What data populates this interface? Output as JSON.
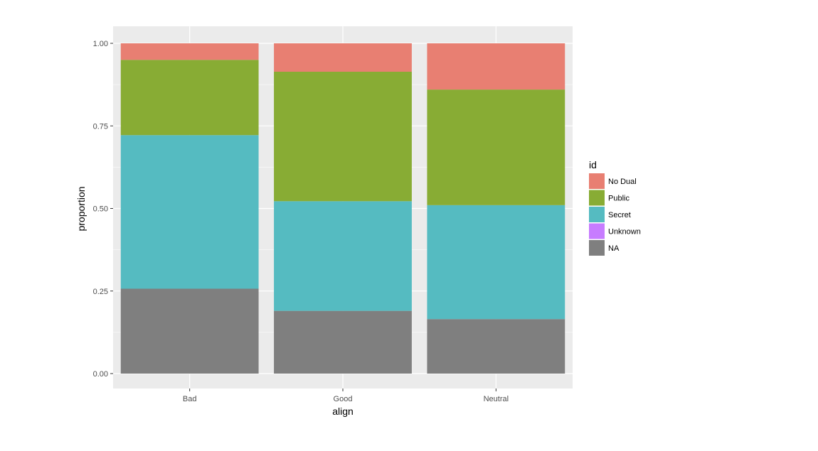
{
  "chart_data": {
    "type": "bar",
    "stacked": true,
    "xlabel": "align",
    "ylabel": "proportion",
    "categories": [
      "Bad",
      "Good",
      "Neutral"
    ],
    "ylim": [
      0,
      1
    ],
    "yticks": [
      0,
      0.25,
      0.5,
      0.75,
      1
    ],
    "ytick_labels": [
      "0.00",
      "0.25",
      "0.50",
      "0.75",
      "1.00"
    ],
    "grid": true,
    "legend": {
      "title": "id",
      "placement": "right",
      "entries": [
        "No Dual",
        "Public",
        "Secret",
        "Unknown",
        "NA"
      ]
    },
    "series": [
      {
        "name": "NA",
        "color": "#7f7f7f",
        "values": [
          0.257,
          0.19,
          0.165
        ]
      },
      {
        "name": "Unknown",
        "color": "#c77cff",
        "values": [
          0.0,
          0.0,
          0.0
        ]
      },
      {
        "name": "Secret",
        "color": "#55bbc1",
        "values": [
          0.465,
          0.332,
          0.345
        ]
      },
      {
        "name": "Public",
        "color": "#88ac34",
        "values": [
          0.228,
          0.392,
          0.35
        ]
      },
      {
        "name": "No Dual",
        "color": "#e87f72",
        "values": [
          0.05,
          0.086,
          0.14
        ]
      }
    ],
    "legend_colors": {
      "No Dual": "#e87f72",
      "Public": "#88ac34",
      "Secret": "#55bbc1",
      "Unknown": "#c77cff",
      "NA": "#7f7f7f"
    }
  }
}
